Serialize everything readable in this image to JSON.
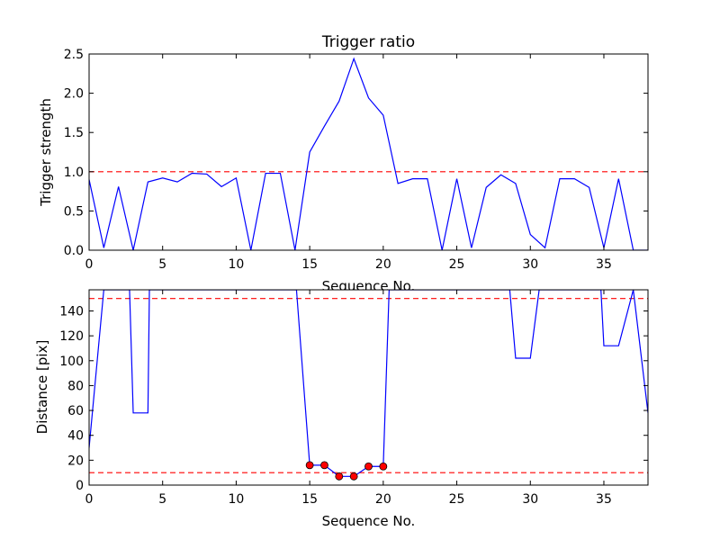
{
  "chart_data": [
    {
      "type": "line",
      "title": "Trigger ratio",
      "xlabel": "Sequence No.",
      "ylabel": "Trigger strength",
      "xlim": [
        0,
        38
      ],
      "ylim": [
        0,
        2.5
      ],
      "xticks": [
        0,
        5,
        10,
        15,
        20,
        25,
        30,
        35
      ],
      "yticks": [
        0.0,
        0.5,
        1.0,
        1.5,
        2.0,
        2.5
      ],
      "xtick_labels": [
        "0",
        "5",
        "10",
        "15",
        "20",
        "25",
        "30",
        "35"
      ],
      "ytick_labels": [
        "0.0",
        "0.5",
        "1.0",
        "1.5",
        "2.0",
        "2.5"
      ],
      "grid": false,
      "series": [
        {
          "color": "#0000ff",
          "style": "solid",
          "x": [
            0,
            1,
            2,
            3,
            4,
            5,
            6,
            7,
            8,
            9,
            10,
            11,
            12,
            13,
            14,
            15,
            16,
            17,
            18,
            19,
            20,
            21,
            22,
            23,
            24,
            25,
            26,
            27,
            28,
            29,
            30,
            31,
            32,
            33,
            34,
            35,
            36,
            37,
            38
          ],
          "values": [
            0.9,
            0.03,
            0.81,
            0.0,
            0.87,
            0.92,
            0.87,
            0.98,
            0.97,
            0.81,
            0.92,
            0.0,
            0.98,
            0.98,
            0.0,
            1.25,
            1.58,
            1.9,
            2.44,
            1.94,
            1.72,
            0.85,
            0.91,
            0.91,
            0.0,
            0.91,
            0.03,
            0.8,
            0.96,
            0.85,
            0.2,
            0.03,
            0.91,
            0.91,
            0.8,
            0.03,
            0.91,
            0.0,
            0.0
          ]
        }
      ],
      "hlines": [
        {
          "y": 1.0,
          "color": "#ff0000",
          "style": "dashed"
        }
      ]
    },
    {
      "type": "line",
      "title": "",
      "xlabel": "Sequence No.",
      "ylabel": "Distance [pix]",
      "xlim": [
        0,
        38
      ],
      "ylim": [
        0,
        157
      ],
      "xticks": [
        0,
        5,
        10,
        15,
        20,
        25,
        30,
        35
      ],
      "yticks": [
        0,
        20,
        40,
        60,
        80,
        100,
        120,
        140
      ],
      "xtick_labels": [
        "0",
        "5",
        "10",
        "15",
        "20",
        "25",
        "30",
        "35"
      ],
      "ytick_labels": [
        "0",
        "20",
        "40",
        "60",
        "80",
        "100",
        "120",
        "140"
      ],
      "grid": false,
      "series": [
        {
          "color": "#0000ff",
          "style": "solid",
          "x": [
            0,
            1,
            2,
            2.75,
            3,
            4,
            4.1,
            14.1,
            15,
            16,
            17,
            18,
            19,
            20,
            20.4,
            28.6,
            29,
            30,
            30.6,
            34.8,
            35,
            36,
            37,
            38
          ],
          "values": [
            30,
            157,
            157,
            157,
            58,
            58,
            157,
            157,
            16,
            16,
            7,
            7,
            15,
            15,
            157,
            157,
            102,
            102,
            157,
            157,
            112,
            112,
            157,
            58
          ]
        }
      ],
      "markers": {
        "color": "#ff0000",
        "edge_color": "#000000",
        "x": [
          15,
          16,
          17,
          18,
          19,
          20
        ],
        "values": [
          16,
          16,
          7,
          7,
          15,
          15
        ]
      },
      "hlines": [
        {
          "y": 150,
          "color": "#ff0000",
          "style": "dashed"
        },
        {
          "y": 10,
          "color": "#ff0000",
          "style": "dashed"
        }
      ]
    }
  ]
}
